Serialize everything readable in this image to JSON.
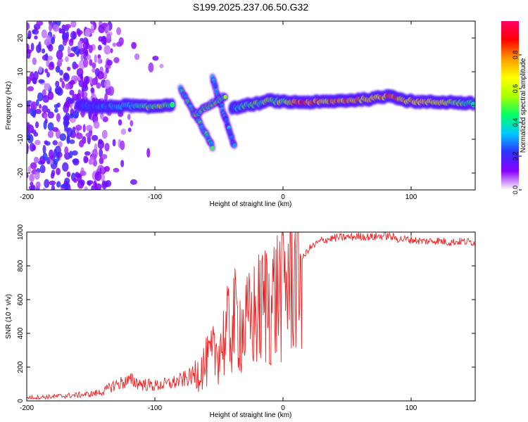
{
  "title": "S199.2025.237.06.50.G32",
  "chart_data": [
    {
      "type": "heatmap",
      "name": "spectrogram",
      "xlabel": "Height of straight line (km)",
      "ylabel": "Frequency (Hz)",
      "xlim": [
        -200,
        150
      ],
      "ylim": [
        -25,
        25
      ],
      "xticks": [
        -200,
        -100,
        0,
        100
      ],
      "xtick_labels": [
        "-200",
        "-100",
        "0",
        "100"
      ],
      "yticks": [
        -20,
        -10,
        0,
        10,
        20
      ],
      "ytick_labels": [
        "-20",
        "-10",
        "0",
        "10",
        "20"
      ],
      "colorbar": {
        "label": "Normalized spectral amplitude",
        "range": [
          0,
          1
        ],
        "ticks": [
          0.0,
          0.2,
          0.4,
          0.6,
          0.8
        ],
        "tick_labels": [
          "0.0",
          "0.2",
          "0.4",
          "0.6",
          "0.8"
        ],
        "stops": [
          "#ffffff",
          "#8a00ff",
          "#3030ff",
          "#00c8ff",
          "#00ff66",
          "#aaff00",
          "#ffff00",
          "#ff9900",
          "#ff0000",
          "#ff0066"
        ]
      },
      "ridge": [
        {
          "x": -160,
          "freq": 0.0,
          "amp": 0.22
        },
        {
          "x": -140,
          "freq": -0.5,
          "amp": 0.3
        },
        {
          "x": -120,
          "freq": 0.0,
          "amp": 0.35
        },
        {
          "x": -105,
          "freq": -0.5,
          "amp": 0.55
        },
        {
          "x": -95,
          "freq": 0.0,
          "amp": 0.6
        },
        {
          "x": -85,
          "freq": 0.5,
          "amp": 0.4
        },
        {
          "x": -40,
          "freq": -1.0,
          "amp": 0.3
        },
        {
          "x": -30,
          "freq": 0.0,
          "amp": 0.45
        },
        {
          "x": -20,
          "freq": 0.5,
          "amp": 0.5
        },
        {
          "x": -10,
          "freq": 1.5,
          "amp": 0.55
        },
        {
          "x": 0,
          "freq": 1.0,
          "amp": 0.6
        },
        {
          "x": 15,
          "freq": 1.0,
          "amp": 0.85
        },
        {
          "x": 30,
          "freq": 1.0,
          "amp": 0.8
        },
        {
          "x": 50,
          "freq": 1.5,
          "amp": 0.8
        },
        {
          "x": 70,
          "freq": 2.0,
          "amp": 0.85
        },
        {
          "x": 85,
          "freq": 3.0,
          "amp": 0.9
        },
        {
          "x": 95,
          "freq": 1.5,
          "amp": 0.75
        },
        {
          "x": 110,
          "freq": 1.0,
          "amp": 0.7
        },
        {
          "x": 130,
          "freq": 1.0,
          "amp": 0.6
        },
        {
          "x": 150,
          "freq": 0.5,
          "amp": 0.5
        }
      ],
      "branches": [
        {
          "x1": -80,
          "y1": 5,
          "x2": -55,
          "y2": -12,
          "amp": 0.45
        },
        {
          "x1": -55,
          "y1": 8,
          "x2": -38,
          "y2": -12,
          "amp": 0.35
        },
        {
          "x1": -70,
          "y1": -3,
          "x2": -45,
          "y2": 3,
          "amp": 0.5
        }
      ],
      "noise_region_km": [
        -200,
        -135
      ]
    },
    {
      "type": "line",
      "name": "snr",
      "xlabel": "Height of straight line (km)",
      "ylabel": "SNR (10 * v/v)",
      "xlim": [
        -200,
        150
      ],
      "ylim": [
        0,
        1000
      ],
      "xticks": [
        -200,
        -100,
        0,
        100
      ],
      "xtick_labels": [
        "-200",
        "-100",
        "0",
        "100"
      ],
      "yticks": [
        0,
        200,
        400,
        600,
        800,
        1000
      ],
      "ytick_labels": [
        "0",
        "200",
        "400",
        "600",
        "800",
        "1000"
      ],
      "color": "#ee2222",
      "series": [
        {
          "name": "SNR",
          "x": [
            -200,
            -180,
            -160,
            -150,
            -140,
            -133,
            -125,
            -118,
            -110,
            -100,
            -90,
            -80,
            -70,
            -60,
            -55,
            -50,
            -45,
            -40,
            -35,
            -30,
            -25,
            -20,
            -15,
            -12,
            -10,
            -5,
            0,
            5,
            10,
            15,
            20,
            30,
            40,
            50,
            60,
            70,
            80,
            90,
            100,
            110,
            120,
            130,
            140,
            150
          ],
          "y": [
            20,
            25,
            35,
            40,
            55,
            90,
            110,
            120,
            100,
            90,
            100,
            120,
            150,
            220,
            260,
            320,
            380,
            450,
            480,
            420,
            480,
            520,
            560,
            620,
            580,
            620,
            700,
            740,
            790,
            840,
            900,
            950,
            965,
            970,
            975,
            970,
            980,
            960,
            955,
            945,
            950,
            940,
            945,
            940
          ]
        }
      ]
    }
  ]
}
